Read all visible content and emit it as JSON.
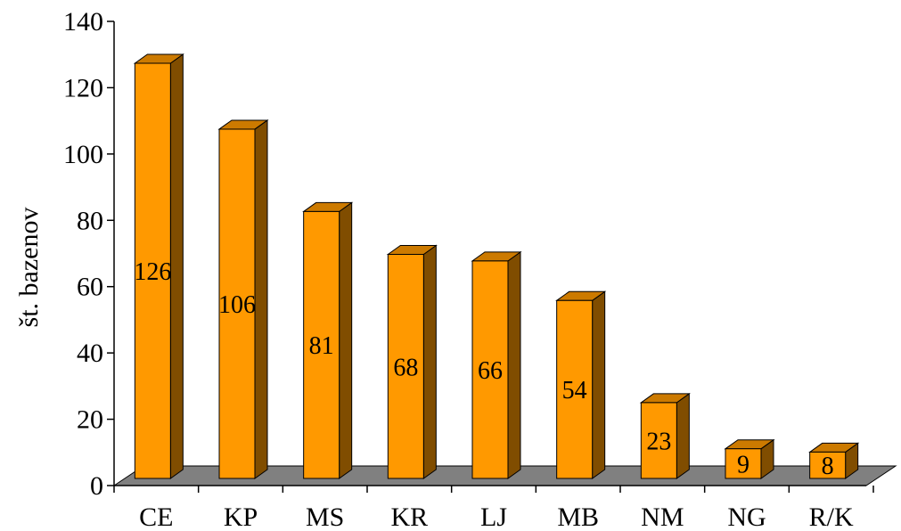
{
  "chart_data": {
    "type": "bar",
    "title": "",
    "xlabel": "",
    "ylabel": "št. bazenov",
    "categories": [
      "CE",
      "KP",
      "MS",
      "KR",
      "LJ",
      "MB",
      "NM",
      "NG",
      "R/K"
    ],
    "values": [
      126,
      106,
      81,
      68,
      66,
      54,
      23,
      9,
      8
    ],
    "ylim": [
      0,
      140
    ],
    "yticks": [
      0,
      20,
      40,
      60,
      80,
      100,
      120,
      140
    ],
    "grid": false,
    "legend": "none",
    "style": "3d-column",
    "colors": {
      "bar_front": "#FF9900",
      "bar_top": "#CC7A00",
      "bar_side": "#804D00",
      "floor": "#808080"
    }
  }
}
